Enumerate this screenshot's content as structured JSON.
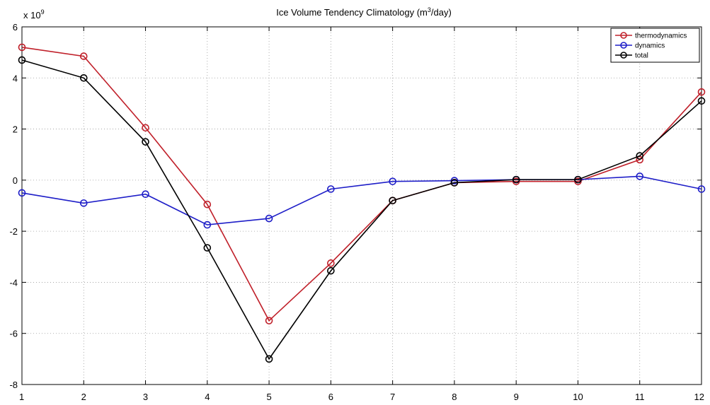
{
  "chart_data": {
    "type": "line",
    "title": "Ice Volume Tendency Climatology (m",
    "title_sup": "3",
    "title_end": "/day)",
    "multiplier_prefix": "x 10",
    "multiplier_exp": "9",
    "x": [
      1,
      2,
      3,
      4,
      5,
      6,
      7,
      8,
      9,
      10,
      11,
      12
    ],
    "xlim": [
      1,
      12
    ],
    "ylim": [
      -8,
      6
    ],
    "xticks": [
      1,
      2,
      3,
      4,
      5,
      6,
      7,
      8,
      9,
      10,
      11,
      12
    ],
    "yticks": [
      -8,
      -6,
      -4,
      -2,
      0,
      2,
      4,
      6
    ],
    "grid": true,
    "legend_position": "top-right",
    "series": [
      {
        "name": "thermodynamics",
        "color": "#c0202a",
        "values": [
          5.2,
          4.85,
          2.05,
          -0.95,
          -5.5,
          -3.25,
          -0.8,
          -0.1,
          -0.05,
          -0.05,
          0.8,
          3.45
        ]
      },
      {
        "name": "dynamics",
        "color": "#1e1ec8",
        "values": [
          -0.5,
          -0.9,
          -0.55,
          -1.75,
          -1.5,
          -0.35,
          -0.05,
          -0.02,
          0.02,
          0.02,
          0.15,
          -0.35
        ]
      },
      {
        "name": "total",
        "color": "#000000",
        "values": [
          4.7,
          4.0,
          1.5,
          -2.65,
          -7.0,
          -3.55,
          -0.8,
          -0.1,
          0.02,
          0.02,
          0.95,
          3.1
        ]
      }
    ]
  }
}
